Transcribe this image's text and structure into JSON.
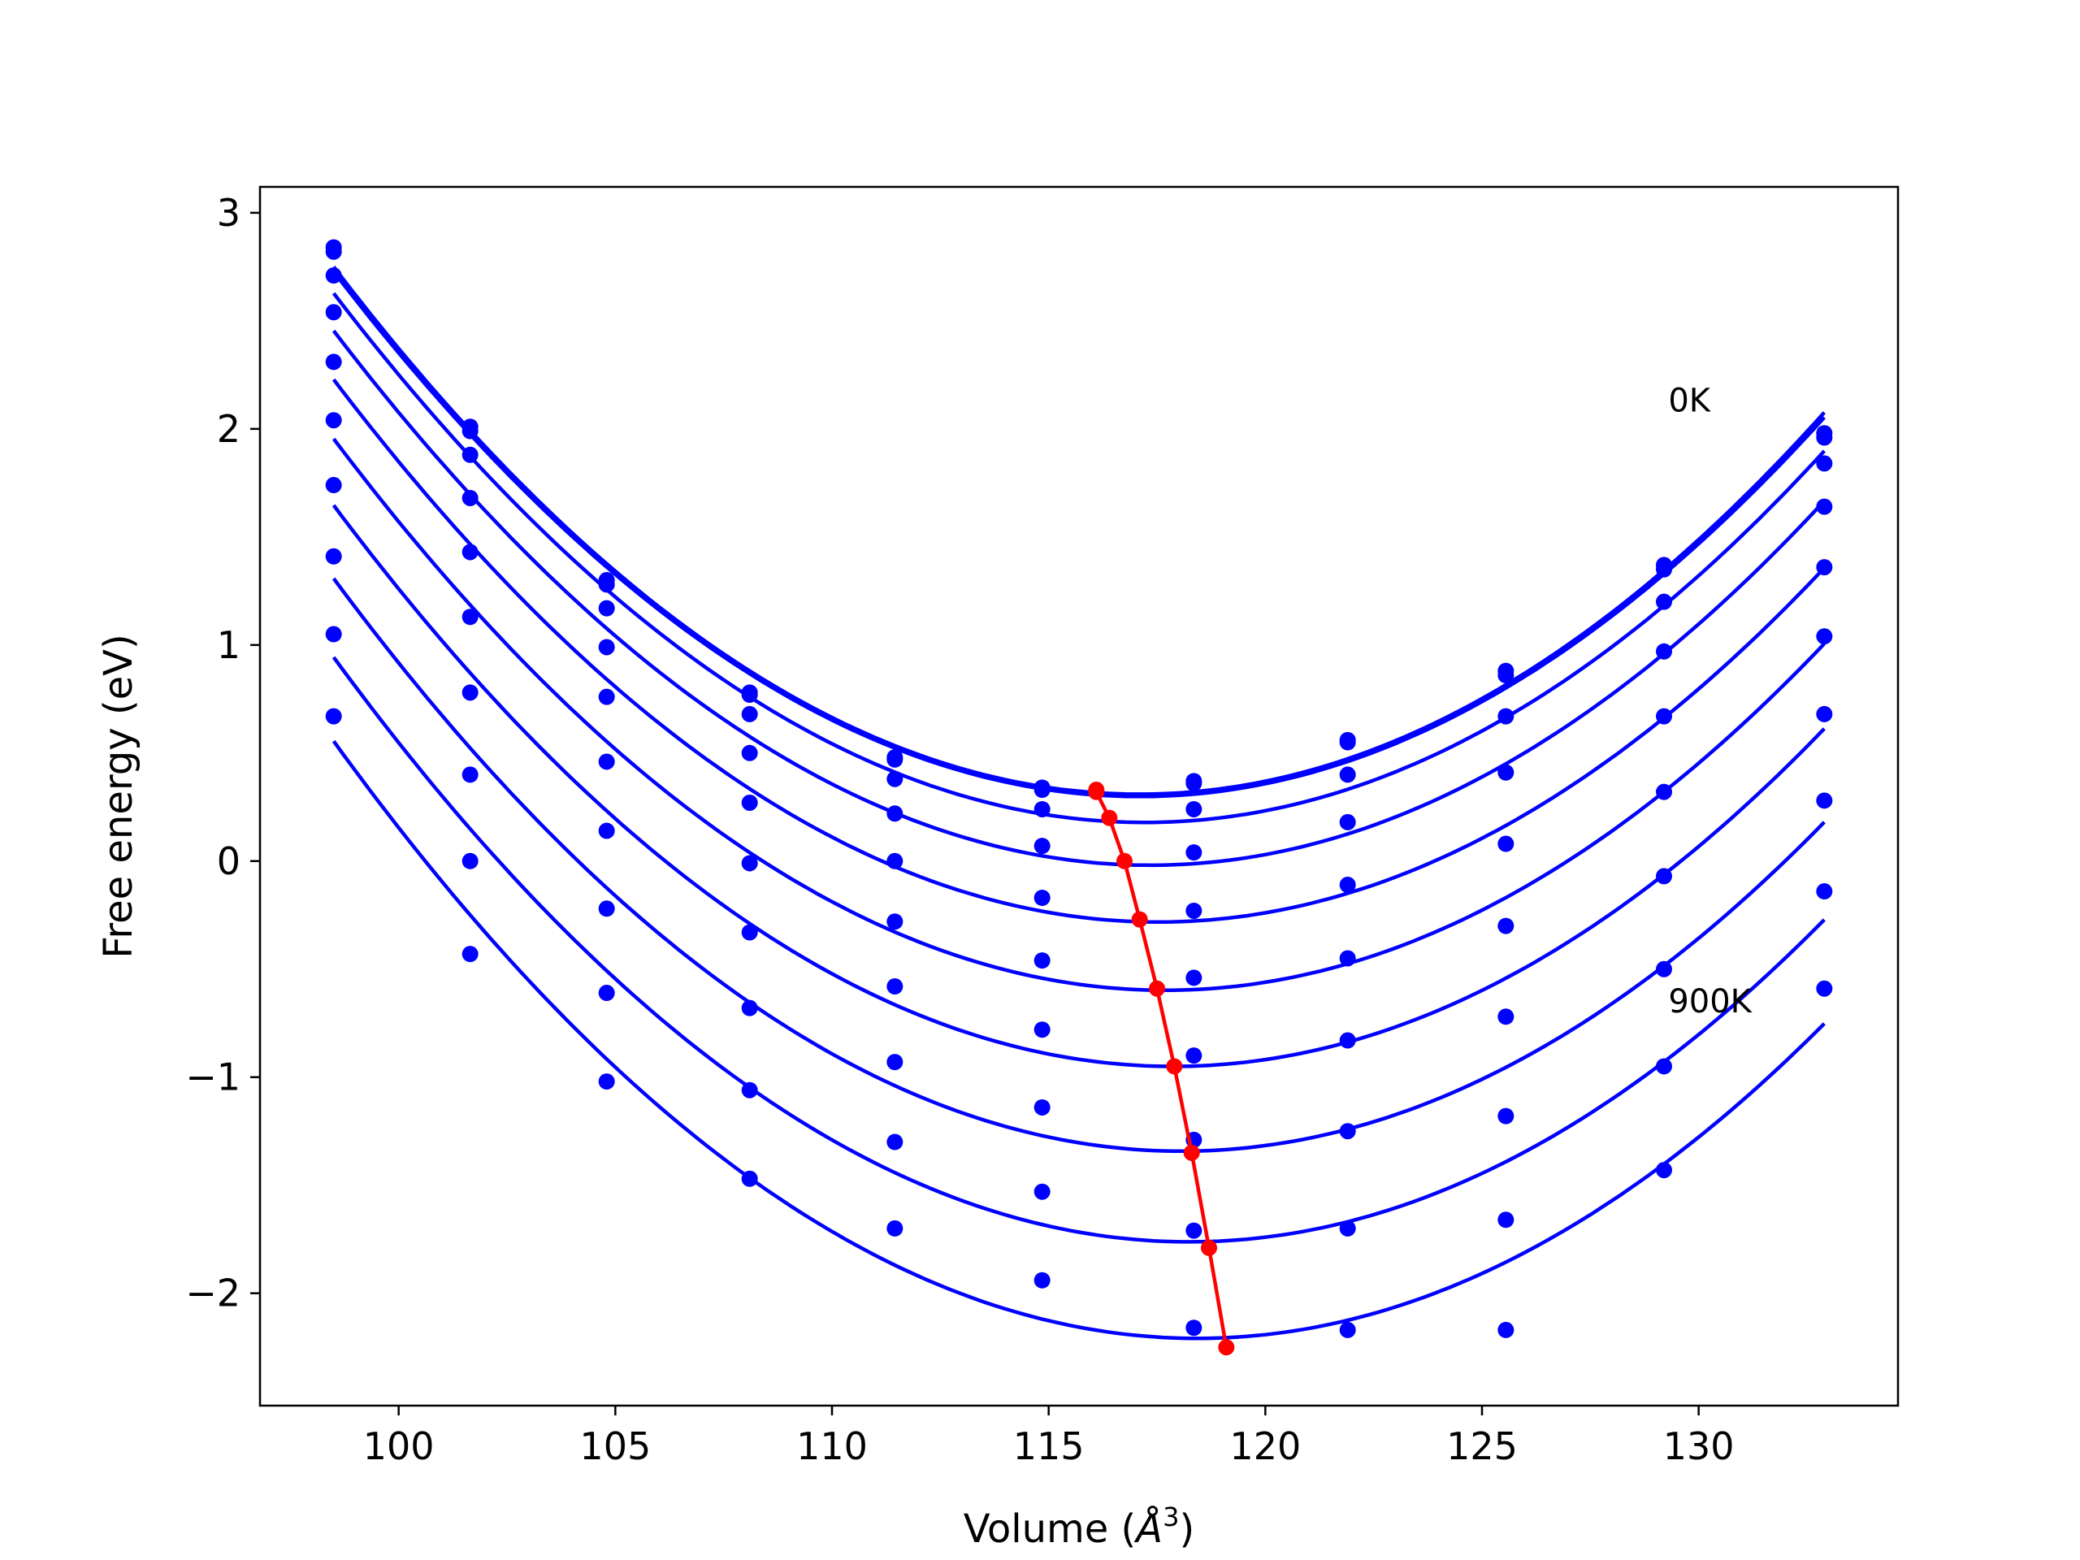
{
  "chart_data": {
    "type": "scatter",
    "title": "",
    "xlabel": "Volume (Å³)",
    "xlabel_main": "Volume (",
    "xlabel_unit": "Å",
    "xlabel_exp": "3",
    "xlabel_close": ")",
    "ylabel": "Free energy (eV)",
    "xlim": [
      96.8,
      134.6
    ],
    "ylim": [
      -2.52,
      3.12
    ],
    "xticks": [
      100,
      105,
      110,
      115,
      120,
      125,
      130
    ],
    "yticks": [
      -2,
      -1,
      0,
      1,
      2,
      3
    ],
    "xtick_labels": [
      "100",
      "105",
      "110",
      "115",
      "120",
      "125",
      "130"
    ],
    "ytick_labels": [
      "−2",
      "−1",
      "0",
      "1",
      "2",
      "3"
    ],
    "grid": false,
    "x": [
      98.5,
      101.65,
      104.8,
      108.1,
      111.45,
      114.85,
      118.35,
      121.9,
      125.55,
      129.2,
      132.9
    ],
    "series": [
      {
        "color": "#0000ff",
        "points": [
          2.84,
          2.01,
          1.3,
          0.78,
          0.48,
          0.34,
          0.37,
          0.56,
          0.88,
          1.37,
          1.98
        ]
      },
      {
        "color": "#0000ff",
        "points": [
          2.82,
          1.99,
          1.28,
          0.77,
          0.47,
          0.33,
          0.36,
          0.55,
          0.86,
          1.35,
          1.96
        ]
      },
      {
        "color": "#0000ff",
        "points": [
          2.71,
          1.88,
          1.17,
          0.68,
          0.38,
          0.24,
          0.24,
          0.4,
          0.67,
          1.2,
          1.84
        ]
      },
      {
        "color": "#0000ff",
        "points": [
          2.54,
          1.68,
          0.99,
          0.5,
          0.22,
          0.07,
          0.04,
          0.18,
          0.41,
          0.97,
          1.64
        ]
      },
      {
        "color": "#0000ff",
        "points": [
          2.31,
          1.43,
          0.76,
          0.27,
          0.0,
          -0.17,
          -0.23,
          -0.11,
          0.08,
          0.67,
          1.36
        ]
      },
      {
        "color": "#0000ff",
        "points": [
          2.04,
          1.13,
          0.46,
          -0.01,
          -0.28,
          -0.46,
          -0.54,
          -0.45,
          -0.3,
          0.32,
          1.04
        ]
      },
      {
        "color": "#0000ff",
        "points": [
          1.74,
          0.78,
          0.14,
          -0.33,
          -0.58,
          -0.78,
          -0.9,
          -0.83,
          -0.72,
          -0.07,
          0.68
        ]
      },
      {
        "color": "#0000ff",
        "points": [
          1.41,
          0.4,
          -0.22,
          -0.68,
          -0.93,
          -1.14,
          -1.29,
          -1.25,
          -1.18,
          -0.5,
          0.28
        ]
      },
      {
        "color": "#0000ff",
        "points": [
          1.05,
          0.0,
          -0.61,
          -1.06,
          -1.3,
          -1.53,
          -1.71,
          -1.7,
          -1.66,
          -0.95,
          -0.14
        ]
      },
      {
        "color": "#0000ff",
        "points": [
          0.67,
          -0.43,
          -1.02,
          -1.47,
          -1.7,
          -1.94,
          -2.16,
          -2.17,
          -2.17,
          -1.43,
          -0.59
        ]
      }
    ],
    "fit_minima": {
      "color": "#ff0000",
      "x": [
        116.1,
        116.1,
        116.4,
        116.75,
        117.1,
        117.5,
        117.9,
        118.3,
        118.7,
        119.1
      ],
      "y": [
        0.33,
        0.32,
        0.2,
        0.0,
        -0.27,
        -0.59,
        -0.95,
        -1.35,
        -1.79,
        -2.25
      ]
    },
    "annotations": [
      {
        "text": "0K",
        "x": 129.3,
        "y": 2.08
      },
      {
        "text": "900K",
        "x": 129.3,
        "y": -0.7
      }
    ]
  }
}
